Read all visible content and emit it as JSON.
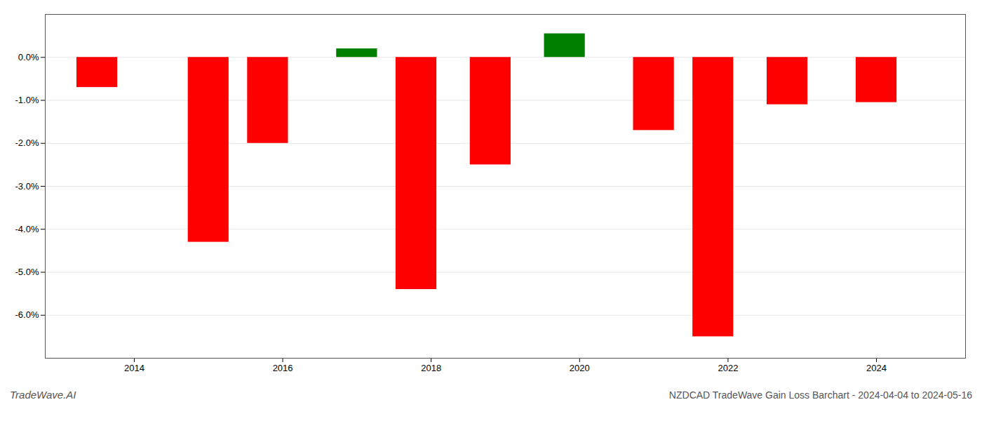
{
  "chart_data": {
    "type": "bar",
    "x": [
      2013.5,
      2015.0,
      2015.8,
      2017.0,
      2017.8,
      2018.8,
      2019.8,
      2021.0,
      2021.8,
      2022.8,
      2024.0
    ],
    "values": [
      -0.7,
      -4.3,
      -2.0,
      0.2,
      -5.4,
      -2.5,
      0.55,
      -1.7,
      -6.5,
      -1.1,
      -1.05
    ],
    "colors": [
      "#ff0000",
      "#ff0000",
      "#ff0000",
      "#008000",
      "#ff0000",
      "#ff0000",
      "#008000",
      "#ff0000",
      "#ff0000",
      "#ff0000",
      "#ff0000"
    ],
    "xlim": [
      2012.8,
      2025.2
    ],
    "xticks": [
      2014,
      2016,
      2018,
      2020,
      2022,
      2024
    ],
    "ylim": [
      -7.0,
      1.0
    ],
    "yticks": [
      {
        "value": 0.0,
        "label": "0.0%"
      },
      {
        "value": -1.0,
        "label": "-1.0%"
      },
      {
        "value": -2.0,
        "label": "-2.0%"
      },
      {
        "value": -3.0,
        "label": "-3.0%"
      },
      {
        "value": -4.0,
        "label": "-4.0%"
      },
      {
        "value": -5.0,
        "label": "-5.0%"
      },
      {
        "value": -6.0,
        "label": "-6.0%"
      }
    ],
    "grid": true,
    "annotations": [
      "TradeWave.AI",
      "NZDCAD TradeWave Gain Loss Barchart - 2024-04-04 to 2024-05-16"
    ]
  }
}
